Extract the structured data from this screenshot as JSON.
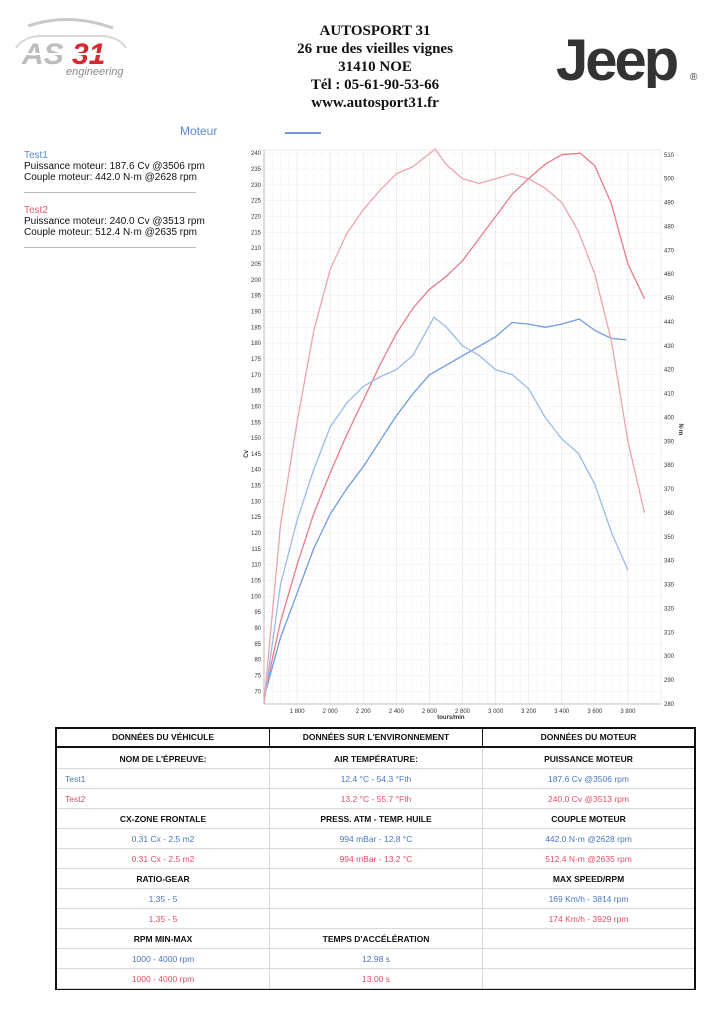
{
  "header": {
    "company": "AUTOSPORT 31",
    "street": "26 rue des vieilles vignes",
    "city": "31410 NOE",
    "phone": "Tél : 05-61-90-53-66",
    "website": "www.autosport31.fr",
    "left_logo_text": "AS31",
    "left_logo_sub": "engineering",
    "right_logo_text": "Jeep",
    "right_logo_mark": "®"
  },
  "legend": {
    "title": "Moteur",
    "tests": [
      {
        "name": "Test1",
        "power": "Puissance moteur: 187.6 Cv @3506 rpm",
        "torque": "Couple moteur: 442.0 N·m @2628 rpm",
        "color": "#5b8bd0"
      },
      {
        "name": "Test2",
        "power": "Puissance moteur: 240.0 Cv @3513 rpm",
        "torque": "Couple moteur: 512.4 N·m @2635 rpm",
        "color": "#e06070"
      }
    ]
  },
  "chart_data": {
    "type": "line",
    "xlabel": "tours/min",
    "ylabel": "Cv",
    "y2label": "N·m",
    "xlim": [
      1600,
      4000
    ],
    "ylim": [
      66,
      241
    ],
    "y2lim": [
      280,
      512
    ],
    "x_ticks": [
      "1 800",
      "2 000",
      "2 200",
      "2 400",
      "2 600",
      "2 800",
      "3 000",
      "3 200",
      "3 400",
      "3 600",
      "3 800"
    ],
    "y_ticks": [
      70,
      75,
      80,
      85,
      90,
      95,
      100,
      105,
      110,
      115,
      120,
      125,
      130,
      135,
      140,
      145,
      150,
      155,
      160,
      165,
      170,
      175,
      180,
      185,
      190,
      195,
      200,
      205,
      210,
      215,
      220,
      225,
      230,
      235,
      240
    ],
    "y2_ticks": [
      280,
      290,
      300,
      310,
      320,
      330,
      340,
      350,
      360,
      370,
      380,
      390,
      400,
      410,
      420,
      430,
      440,
      450,
      460,
      470,
      480,
      490,
      500,
      510
    ],
    "grid": true,
    "series": [
      {
        "name": "Test1",
        "kind": "power",
        "axis": "left",
        "color": "#6f9be0",
        "points": [
          [
            1600,
            68
          ],
          [
            1700,
            87
          ],
          [
            1800,
            101
          ],
          [
            1900,
            115
          ],
          [
            2000,
            126
          ],
          [
            2100,
            134
          ],
          [
            2200,
            141
          ],
          [
            2300,
            149
          ],
          [
            2400,
            157
          ],
          [
            2500,
            164
          ],
          [
            2600,
            170
          ],
          [
            2700,
            173
          ],
          [
            2800,
            176
          ],
          [
            2900,
            179
          ],
          [
            3000,
            182
          ],
          [
            3100,
            186.5
          ],
          [
            3200,
            186
          ],
          [
            3300,
            185
          ],
          [
            3400,
            186
          ],
          [
            3506,
            187.6
          ],
          [
            3600,
            184
          ],
          [
            3700,
            181.5
          ],
          [
            3790,
            181
          ]
        ]
      },
      {
        "name": "Test2",
        "kind": "power",
        "axis": "left",
        "color": "#ea7b8b",
        "points": [
          [
            1600,
            68
          ],
          [
            1700,
            92
          ],
          [
            1800,
            110
          ],
          [
            1900,
            126
          ],
          [
            2000,
            139
          ],
          [
            2100,
            151
          ],
          [
            2200,
            162
          ],
          [
            2300,
            173
          ],
          [
            2400,
            183
          ],
          [
            2500,
            191
          ],
          [
            2600,
            197
          ],
          [
            2700,
            201
          ],
          [
            2800,
            206
          ],
          [
            2900,
            213
          ],
          [
            3000,
            220
          ],
          [
            3100,
            227
          ],
          [
            3200,
            232
          ],
          [
            3300,
            236.5
          ],
          [
            3400,
            239.5
          ],
          [
            3513,
            240
          ],
          [
            3600,
            236
          ],
          [
            3700,
            224
          ],
          [
            3800,
            205
          ],
          [
            3900,
            194
          ]
        ]
      },
      {
        "name": "Test1",
        "kind": "torque",
        "axis": "right",
        "color": "#9db9ea",
        "points": [
          [
            1600,
            280
          ],
          [
            1700,
            330
          ],
          [
            1800,
            357
          ],
          [
            1900,
            378
          ],
          [
            2000,
            396
          ],
          [
            2100,
            406
          ],
          [
            2200,
            413
          ],
          [
            2300,
            417
          ],
          [
            2400,
            420
          ],
          [
            2500,
            426
          ],
          [
            2628,
            442
          ],
          [
            2700,
            438
          ],
          [
            2800,
            430
          ],
          [
            2900,
            426
          ],
          [
            3000,
            420
          ],
          [
            3100,
            418
          ],
          [
            3200,
            412
          ],
          [
            3300,
            400
          ],
          [
            3400,
            391
          ],
          [
            3500,
            385
          ],
          [
            3600,
            372
          ],
          [
            3700,
            352
          ],
          [
            3800,
            336
          ]
        ]
      },
      {
        "name": "Test2",
        "kind": "torque",
        "axis": "right",
        "color": "#eea3ae",
        "points": [
          [
            1600,
            280
          ],
          [
            1700,
            355
          ],
          [
            1800,
            398
          ],
          [
            1900,
            436
          ],
          [
            2000,
            462
          ],
          [
            2100,
            477
          ],
          [
            2200,
            487
          ],
          [
            2300,
            495
          ],
          [
            2400,
            502
          ],
          [
            2500,
            505
          ],
          [
            2635,
            512.4
          ],
          [
            2700,
            506
          ],
          [
            2800,
            500
          ],
          [
            2900,
            498
          ],
          [
            3000,
            500
          ],
          [
            3100,
            502
          ],
          [
            3200,
            500
          ],
          [
            3300,
            496
          ],
          [
            3400,
            490
          ],
          [
            3500,
            478
          ],
          [
            3600,
            460
          ],
          [
            3700,
            432
          ],
          [
            3800,
            390
          ],
          [
            3900,
            360
          ]
        ]
      }
    ]
  },
  "table": {
    "headers": [
      "DONNÉES DU VÉHICULE",
      "DONNÉES SUR L'ENVIRONNEMENT",
      "DONNÉES DU MOTEUR"
    ],
    "rows": [
      {
        "type": "label",
        "cells": [
          "NOM DE L'ÉPREUVE:",
          "AIR TEMPÉRATURE:",
          "PUISSANCE MOTEUR"
        ]
      },
      {
        "type": "blue",
        "cells": [
          "Test1",
          "12.4 °C - 54.3 °Fth",
          "187.6  Cv  @3506 rpm"
        ]
      },
      {
        "type": "red",
        "cells": [
          "Test2",
          "13.2 °C - 55.7 °Fth",
          "240.0  Cv  @3513 rpm"
        ]
      },
      {
        "type": "label",
        "cells": [
          "CX-ZONE FRONTALE",
          "PRESS. ATM - TEMP. HUILE",
          "COUPLE MOTEUR"
        ]
      },
      {
        "type": "blue",
        "cells": [
          "0.31 Cx - 2.5 m2",
          "994 mBar - 12.8 °C",
          "442.0  N·m  @2628 rpm"
        ]
      },
      {
        "type": "red",
        "cells": [
          "0.31 Cx - 2.5 m2",
          "994 mBar - 13.2 °C",
          "512.4  N·m  @2635 rpm"
        ]
      },
      {
        "type": "label",
        "cells": [
          "RATIO-GEAR",
          "",
          "MAX SPEED/RPM"
        ]
      },
      {
        "type": "blue",
        "cells": [
          "1.35 - 5",
          "",
          "169 Km/h - 3814 rpm"
        ]
      },
      {
        "type": "red",
        "cells": [
          "1.35 - 5",
          "",
          "174 Km/h - 3929 rpm"
        ]
      },
      {
        "type": "label",
        "cells": [
          "RPM MIN-MAX",
          "TEMPS D'ACCÉLÉRATION",
          ""
        ]
      },
      {
        "type": "blue",
        "cells": [
          "1000 - 4000 rpm",
          "12.98 s",
          ""
        ]
      },
      {
        "type": "red",
        "cells": [
          "1000 - 4000 rpm",
          "13.00 s",
          ""
        ]
      }
    ]
  }
}
